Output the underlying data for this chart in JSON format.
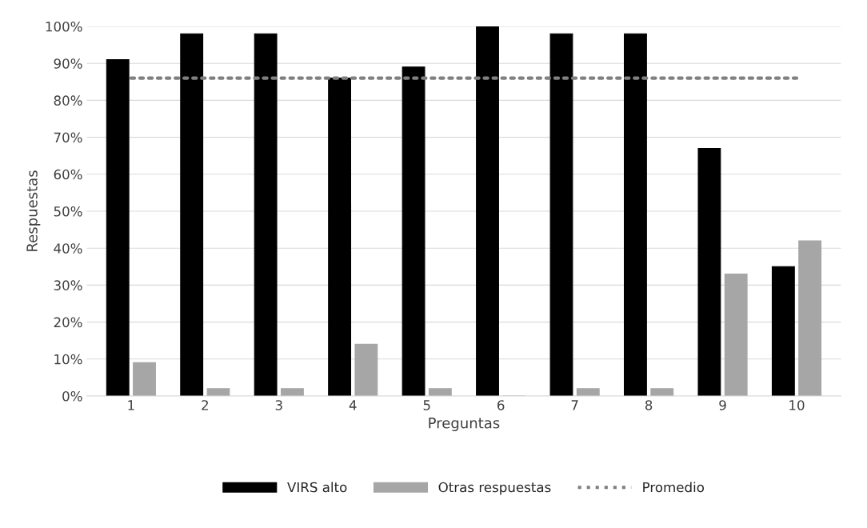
{
  "chart_data": {
    "type": "bar",
    "xlabel": "Preguntas",
    "ylabel": "Respuestas",
    "categories": [
      "1",
      "2",
      "3",
      "4",
      "5",
      "6",
      "7",
      "8",
      "9",
      "10"
    ],
    "series": [
      {
        "name": "VIRS alto",
        "color": "#000000",
        "values": [
          91,
          98,
          98,
          86,
          89,
          100,
          98,
          98,
          67,
          35
        ]
      },
      {
        "name": "Otras respuestas",
        "color": "#a6a6a6",
        "values": [
          9,
          2,
          2,
          14,
          2,
          0,
          2,
          2,
          33,
          42
        ]
      },
      {
        "name": "Promedio",
        "type": "line",
        "color": "#808080",
        "line_style": "dotted",
        "values": [
          86,
          86,
          86,
          86,
          86,
          86,
          86,
          86,
          86,
          86
        ]
      }
    ],
    "ylim": [
      0,
      100
    ],
    "yticks": [
      {
        "value": 0,
        "label": "0%"
      },
      {
        "value": 10,
        "label": "10%"
      },
      {
        "value": 20,
        "label": "20%"
      },
      {
        "value": 30,
        "label": "30%"
      },
      {
        "value": 40,
        "label": "40%"
      },
      {
        "value": 50,
        "label": "50%"
      },
      {
        "value": 60,
        "label": "60%"
      },
      {
        "value": 70,
        "label": "70%"
      },
      {
        "value": 80,
        "label": "80%"
      },
      {
        "value": 90,
        "label": "90%"
      },
      {
        "value": 100,
        "label": "100%"
      }
    ],
    "grid": "y",
    "legend": "bottom"
  }
}
